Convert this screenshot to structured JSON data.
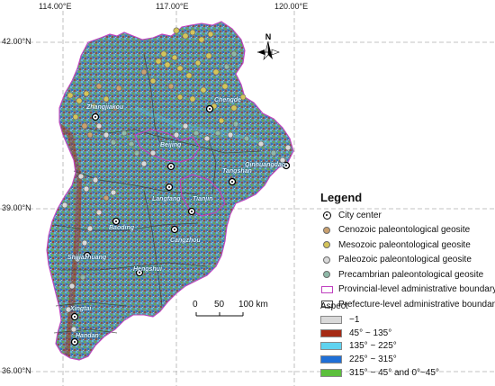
{
  "coordinates": {
    "top": [
      "114.00°E",
      "117.00°E",
      "120.00°E"
    ],
    "left": [
      "42.00°N",
      "39.00°N",
      "36.00°N"
    ]
  },
  "north_arrow": "N",
  "cities": [
    "Zhangjiakou",
    "Chengde",
    "Beijing",
    "Qinhuangdao",
    "Tangshan",
    "Tianjin",
    "Langfang",
    "Baoding",
    "Cangzhou",
    "Shijiazhuang",
    "Hengshui",
    "Xingtai",
    "Handan"
  ],
  "scale_bar": {
    "labels": [
      "0",
      "50",
      "100 km"
    ]
  },
  "legend": {
    "title": "Legend",
    "items": [
      {
        "label": "City center",
        "symbol": "city"
      },
      {
        "label": "Cenozoic paleontological geosite",
        "symbol": "dot",
        "color": "#c9a06f"
      },
      {
        "label": "Mesozoic paleontological geosite",
        "symbol": "dot",
        "color": "#d4c45a"
      },
      {
        "label": "Paleozoic paleontological geosite",
        "symbol": "dot",
        "color": "#d9d9d9"
      },
      {
        "label": "Precambrian paleontological geosite",
        "symbol": "dot",
        "color": "#8fb9a8"
      },
      {
        "label": "Provincial-level administrative boundary",
        "symbol": "box",
        "color": "#c040c0"
      },
      {
        "label": "Prefecture-level administrative boundary",
        "symbol": "box",
        "color": "#444444"
      }
    ]
  },
  "aspect": {
    "title": "Aspect",
    "items": [
      {
        "label": "−1",
        "color": "#d9d9d9"
      },
      {
        "label": "45° ~ 135°",
        "color": "#a62a14"
      },
      {
        "label": "135° ~ 225°",
        "color": "#5fd3f0"
      },
      {
        "label": "225° ~ 315°",
        "color": "#1f6fd6"
      },
      {
        "label": "315° ~ 45° and 0°~45°",
        "color": "#5cbf3c"
      }
    ]
  }
}
